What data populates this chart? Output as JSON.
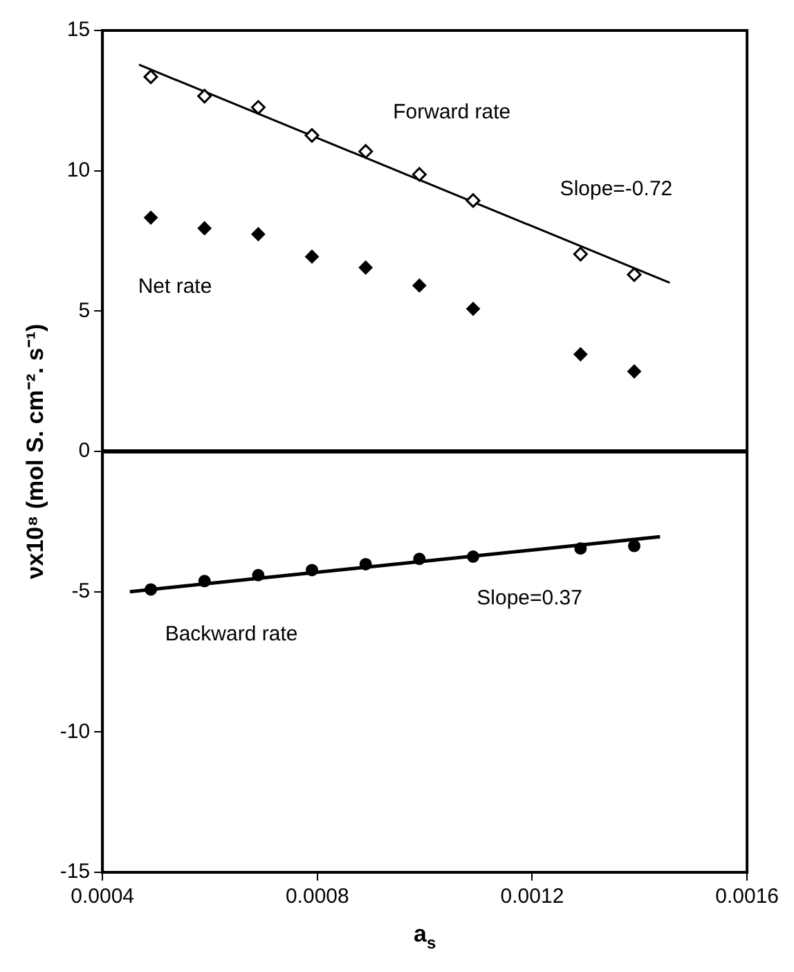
{
  "chart_data": {
    "type": "scatter",
    "xlabel": "a$_{s}$",
    "ylabel": "νx10⁸ (mol S. cm⁻². s⁻¹)",
    "xlim": [
      0.0004,
      0.0016
    ],
    "xticks": [
      0.0004,
      0.0008,
      0.0012,
      0.0016
    ],
    "ylim": [
      -15,
      15
    ],
    "yticks": [
      -15,
      -10,
      -5,
      0,
      5,
      10,
      15
    ],
    "grid": false,
    "legend": false,
    "ref_lines": [
      {
        "axis": "y",
        "value": 0,
        "color": "#000000"
      }
    ],
    "series": [
      {
        "name": "Forward rate",
        "marker": "diamond",
        "color": "#000000",
        "x": [
          0.00049,
          0.00059,
          0.00069,
          0.00079,
          0.00089,
          0.00099,
          0.00109,
          0.00129,
          0.00139
        ],
        "values": [
          13.35,
          12.66,
          12.26,
          11.26,
          10.69,
          9.87,
          8.94,
          7.03,
          6.3
        ]
      },
      {
        "name": "Net rate",
        "marker": "diamond",
        "color": "#000000",
        "x": [
          0.00049,
          0.00059,
          0.00069,
          0.00079,
          0.00089,
          0.00099,
          0.00109,
          0.00129,
          0.00139
        ],
        "values": [
          8.33,
          7.95,
          7.74,
          6.94,
          6.55,
          5.91,
          5.08,
          3.46,
          2.85
        ]
      },
      {
        "name": "Backward rate",
        "marker": "circle",
        "color": "#000000",
        "x": [
          0.00049,
          0.00059,
          0.00069,
          0.00079,
          0.00089,
          0.00099,
          0.00109,
          0.00129,
          0.00139
        ],
        "values": [
          -4.92,
          -4.62,
          -4.41,
          -4.23,
          -4.02,
          -3.83,
          -3.75,
          -3.46,
          -3.37
        ]
      },
      {
        "type": "line",
        "marker": "none",
        "color": "#000000",
        "x": [
          0.000468,
          0.001456
        ],
        "values": [
          13.78,
          6.01
        ]
      },
      {
        "type": "line",
        "marker": "none",
        "color": "#000000",
        "x": [
          0.000451,
          0.001438
        ],
        "values": [
          -5.0,
          -3.04
        ]
      }
    ],
    "annotations": [
      "Slope=-0.72",
      "Slope=0.37"
    ]
  }
}
